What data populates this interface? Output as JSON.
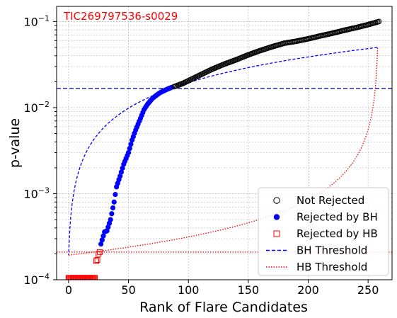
{
  "chart_data": {
    "type": "scatter",
    "title": "",
    "annotation": "TIC269797536-s0029",
    "xlabel": "Rank of Flare Candidates",
    "ylabel": "p-value",
    "xlim": [
      -10,
      270
    ],
    "ylim": [
      0.0001,
      0.15
    ],
    "yscale": "log",
    "x_ticks": [
      0,
      50,
      100,
      150,
      200,
      250
    ],
    "x_tick_labels": [
      "0",
      "50",
      "100",
      "150",
      "200",
      "250"
    ],
    "y_ticks": [
      0.0001,
      0.001,
      0.01,
      0.1
    ],
    "y_tick_labels": [
      {
        "base": "10",
        "exp": "−4"
      },
      {
        "base": "10",
        "exp": "−3"
      },
      {
        "base": "10",
        "exp": "−2"
      },
      {
        "base": "10",
        "exp": "−1"
      }
    ],
    "grid": true,
    "legend_position": "lower-right",
    "n_candidates": 259,
    "alpha": 0.05,
    "series": [
      {
        "name": "Not Rejected",
        "marker": "open-circle",
        "color": "#000000",
        "x": [
          88,
          95,
          100,
          110,
          120,
          130,
          140,
          150,
          160,
          170,
          180,
          190,
          200,
          210,
          220,
          230,
          240,
          250,
          259
        ],
        "y": [
          0.0175,
          0.019,
          0.0205,
          0.024,
          0.028,
          0.032,
          0.036,
          0.041,
          0.046,
          0.051,
          0.056,
          0.059,
          0.063,
          0.068,
          0.073,
          0.079,
          0.085,
          0.092,
          0.1
        ]
      },
      {
        "name": "Rejected by BH",
        "marker": "filled-circle",
        "color": "#0000ff",
        "x": [
          27,
          30,
          32,
          35,
          38,
          40,
          43,
          46,
          50,
          53,
          56,
          60,
          63,
          66,
          70,
          73,
          76,
          80,
          83,
          86
        ],
        "y": [
          0.00026,
          0.00036,
          0.00037,
          0.0005,
          0.0008,
          0.0012,
          0.0016,
          0.0022,
          0.003,
          0.0042,
          0.0055,
          0.0075,
          0.0095,
          0.011,
          0.0128,
          0.0138,
          0.0148,
          0.0158,
          0.0165,
          0.0172
        ]
      },
      {
        "name": "Rejected by HB",
        "marker": "open-square",
        "color": "#ff0000",
        "x": [
          0,
          2,
          4,
          6,
          8,
          10,
          12,
          14,
          16,
          18,
          20,
          22,
          23,
          24,
          25,
          26
        ],
        "y": [
          0.000105,
          0.000105,
          0.000105,
          0.000105,
          0.000105,
          0.000105,
          0.000105,
          0.000105,
          0.000105,
          0.000105,
          0.000105,
          0.000105,
          0.000165,
          0.00017,
          0.0002,
          0.00021
        ]
      },
      {
        "name": "BH Threshold",
        "style": "dashed",
        "color": "#0000ff"
      },
      {
        "name": "HB Threshold",
        "style": "dotted",
        "color": "#ff0000"
      }
    ],
    "horizontal_lines": [
      {
        "y": 0.0167,
        "style": "dashed",
        "color": "#00008b"
      },
      {
        "y": 0.00021,
        "style": "dotted",
        "color": "#ff0000"
      }
    ]
  }
}
